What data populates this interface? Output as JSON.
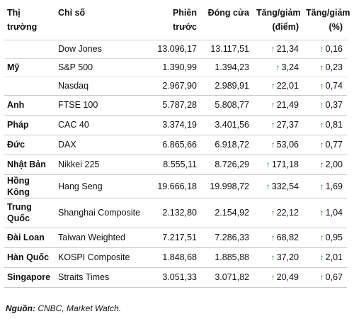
{
  "table": {
    "headers": {
      "market": "Thị trường",
      "index": "Chỉ số",
      "previous": "Phiên\ntrước",
      "close": "Đóng cửa",
      "change_points": "Tăng/giảm\n(điểm)",
      "change_percent": "Tăng/giảm\n(%)"
    },
    "rows": [
      {
        "country": "",
        "index": "Dow Jones",
        "previous": "13.096,17",
        "close": "13.117,51",
        "change": "21,34",
        "percent": "0,16"
      },
      {
        "country": "Mỹ",
        "index": "S&P 500",
        "previous": "1.390,99",
        "close": "1.394,23",
        "change": "3,24",
        "percent": "0,23"
      },
      {
        "country": "",
        "index": "Nasdaq",
        "previous": "2.967,90",
        "close": "2.989,91",
        "change": "22,01",
        "percent": "0,74"
      },
      {
        "country": "Anh",
        "index": "FTSE 100",
        "previous": "5.787,28",
        "close": "5.808,77",
        "change": "21,49",
        "percent": "0,37"
      },
      {
        "country": "Pháp",
        "index": "CAC 40",
        "previous": "3.374,19",
        "close": "3.401,56",
        "change": "27,37",
        "percent": "0,81"
      },
      {
        "country": "Đức",
        "index": "DAX",
        "previous": "6.865,66",
        "close": "6.918,72",
        "change": "53,06",
        "percent": "0,77"
      },
      {
        "country": "Nhật Bản",
        "index": "Nikkei 225",
        "previous": "8.555,11",
        "close": "8.726,29",
        "change": "171,18",
        "percent": "2,00"
      },
      {
        "country": "Hồng Kông",
        "index": "Hang Seng",
        "previous": "19.666,18",
        "close": "19.998,72",
        "change": "332,54",
        "percent": "1,69"
      },
      {
        "country": "Trung\nQuốc",
        "index": "Shanghai Composite",
        "previous": "2.132,80",
        "close": "2.154,92",
        "change": "22,12",
        "percent": "1,04"
      },
      {
        "country": "Đài Loan",
        "index": "Taiwan Weighted",
        "previous": "7.217,51",
        "close": "7.286,33",
        "change": "68,82",
        "percent": "0,95"
      },
      {
        "country": "Hàn Quốc",
        "index": "KOSPI Composite",
        "previous": "1.848,68",
        "close": "1.885,88",
        "change": "37,20",
        "percent": "2,01"
      },
      {
        "country": "Singapore",
        "index": "Straits Times",
        "previous": "3.051,33",
        "close": "3.071,82",
        "change": "20,49",
        "percent": "0,67"
      }
    ],
    "arrow_icon": "up-arrow-icon",
    "arrow_color": "#1e8a1e"
  },
  "source": {
    "label": "Nguồn:",
    "text": "CNBC, Market Watch."
  }
}
